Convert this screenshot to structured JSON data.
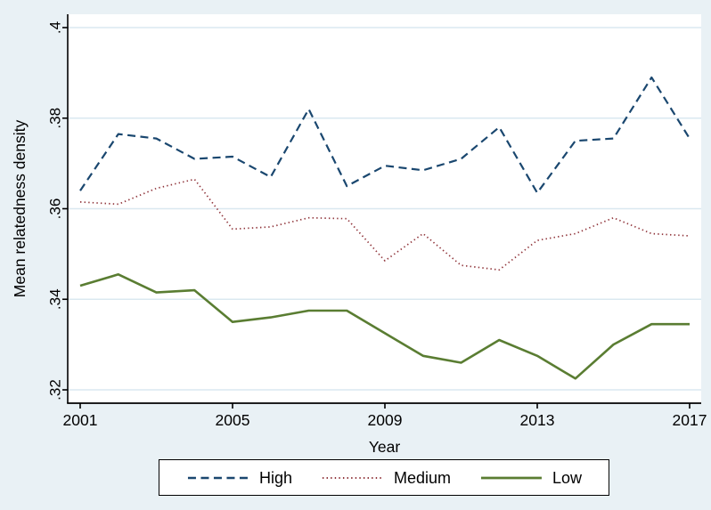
{
  "figure": {
    "background_color": "#e9f1f5",
    "plot_background_color": "#ffffff",
    "gridline_color": "#dae8f0",
    "axis_color": "#000000",
    "text_color": "#000000"
  },
  "chart_data": {
    "type": "line",
    "title": "",
    "xlabel": "Year",
    "ylabel": "Mean relatedness density",
    "grid": true,
    "legend_position": "bottom-outside",
    "x_tick_labels": [
      "2001",
      "2005",
      "2009",
      "2013",
      "2017"
    ],
    "y_tick_labels": [
      ".4",
      ".38",
      ".36",
      ".34",
      ".32"
    ],
    "ylim": [
      0.32,
      0.4
    ],
    "xlim": [
      2001,
      2017
    ],
    "x": [
      2001,
      2002,
      2003,
      2004,
      2005,
      2006,
      2007,
      2008,
      2009,
      2010,
      2011,
      2012,
      2013,
      2014,
      2015,
      2016,
      2017
    ],
    "series": [
      {
        "name": "High",
        "style": "dashed",
        "color": "#1a476f",
        "values": [
          0.364,
          0.3765,
          0.3755,
          0.371,
          0.3715,
          0.367,
          0.382,
          0.365,
          0.3695,
          0.3685,
          0.371,
          0.378,
          0.3635,
          0.375,
          0.3755,
          0.389,
          0.3755
        ]
      },
      {
        "name": "Medium",
        "style": "dotted",
        "color": "#90353b",
        "values": [
          0.3615,
          0.361,
          0.3645,
          0.3665,
          0.3555,
          0.356,
          0.358,
          0.3578,
          0.3485,
          0.3545,
          0.3475,
          0.3465,
          0.353,
          0.3545,
          0.358,
          0.3545,
          0.354
        ]
      },
      {
        "name": "Low",
        "style": "solid",
        "color": "#5a7d32",
        "values": [
          0.343,
          0.3455,
          0.3415,
          0.342,
          0.335,
          0.336,
          0.3375,
          0.3375,
          0.3325,
          0.3275,
          0.326,
          0.331,
          0.3275,
          0.3225,
          0.33,
          0.3345,
          0.3345
        ]
      }
    ]
  }
}
